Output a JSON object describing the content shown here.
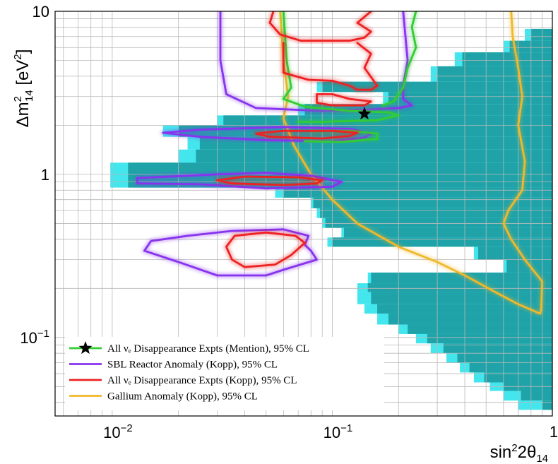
{
  "chart_data": {
    "type": "contour",
    "xlabel": "sin²2θ₁₄",
    "ylabel": "Δm²₁₄ [eV²]",
    "xscale": "log",
    "yscale": "log",
    "xlim": [
      0.0055,
      1.0
    ],
    "ylim": [
      0.033,
      10
    ],
    "grid": true,
    "x_tick_labels": [
      {
        "value": 0.01,
        "base": "10",
        "exp": "−2"
      },
      {
        "value": 0.1,
        "base": "10",
        "exp": "−1"
      },
      {
        "value": 1,
        "base": "1",
        "exp": ""
      }
    ],
    "y_tick_labels": [
      {
        "value": 0.1,
        "base": "10",
        "exp": "−1"
      },
      {
        "value": 1,
        "base": "1",
        "exp": ""
      },
      {
        "value": 10,
        "base": "10",
        "exp": ""
      }
    ],
    "legend_placement": "bottom-left",
    "legend": [
      {
        "label": "All νₑ Disappearance Expts (Mention), 95% CL",
        "color": "#33cc33",
        "marker": "star"
      },
      {
        "label": "SBL Reactor Anomaly (Kopp), 95% CL",
        "color": "#8833ee",
        "marker": "line"
      },
      {
        "label": "All νₑ Disappearance Expts (Kopp), 95% CL",
        "color": "#ee2222",
        "marker": "line"
      },
      {
        "label": "Gallium Anomaly (Kopp), 95% CL",
        "color": "#f0b82a",
        "marker": "line"
      }
    ],
    "colors": {
      "region_inner": "#1fa3a8",
      "region_outer": "#44e6ee",
      "grid": "#b8b8b8"
    },
    "best_fit": {
      "x": 0.14,
      "y": 2.35
    },
    "excluded_region_bands": [
      {
        "y": [
          6.6,
          7.8
        ],
        "x_outer": [
          0.75,
          1.0
        ],
        "x_inner": [
          0.8,
          1.0
        ]
      },
      {
        "y": [
          5.6,
          6.6
        ],
        "x_outer": [
          0.6,
          1.0
        ],
        "x_inner": [
          0.64,
          1.0
        ]
      },
      {
        "y": [
          4.6,
          5.6
        ],
        "x_outer": [
          0.36,
          1.0
        ],
        "x_inner": [
          0.39,
          1.0
        ]
      },
      {
        "y": [
          3.7,
          4.6
        ],
        "x_outer": [
          0.28,
          1.0
        ],
        "x_inner": [
          0.3,
          1.0
        ]
      },
      {
        "y": [
          3.2,
          3.7
        ],
        "x_outer": [
          0.085,
          1.0
        ],
        "x_inner": [
          0.09,
          1.0
        ]
      },
      {
        "y": [
          2.7,
          3.2
        ],
        "x_outer": [
          0.17,
          1.0
        ],
        "x_inner": [
          0.18,
          1.0
        ]
      },
      {
        "y": [
          2.3,
          2.7
        ],
        "x_outer": [
          0.07,
          1.0
        ],
        "x_inner": [
          0.075,
          1.0
        ]
      },
      {
        "y": [
          2.0,
          2.3
        ],
        "x_outer": [
          0.03,
          1.0
        ],
        "x_inner": [
          0.032,
          1.0
        ]
      },
      {
        "y": [
          1.7,
          2.0
        ],
        "x_outer": [
          0.017,
          1.0
        ],
        "x_inner": [
          0.02,
          1.0
        ]
      },
      {
        "y": [
          1.42,
          1.7
        ],
        "x_outer": [
          0.022,
          1.0
        ],
        "x_inner": [
          0.025,
          1.0
        ]
      },
      {
        "y": [
          1.18,
          1.42
        ],
        "x_outer": [
          0.02,
          1.0
        ],
        "x_inner": [
          0.024,
          1.0
        ]
      },
      {
        "y": [
          1.0,
          1.18
        ],
        "x_outer": [
          0.0098,
          1.0
        ],
        "x_inner": [
          0.0118,
          1.0
        ]
      },
      {
        "y": [
          0.83,
          1.0
        ],
        "x_outer": [
          0.0098,
          1.0
        ],
        "x_inner": [
          0.0118,
          1.0
        ]
      },
      {
        "y": [
          0.72,
          0.83
        ],
        "x_outer": [
          0.055,
          1.0
        ],
        "x_inner": [
          0.06,
          1.0
        ]
      },
      {
        "y": [
          0.62,
          0.72
        ],
        "x_outer": [
          0.08,
          1.0
        ],
        "x_inner": [
          0.082,
          1.0
        ]
      },
      {
        "y": [
          0.54,
          0.62
        ],
        "x_outer": [
          0.085,
          1.0
        ],
        "x_inner": [
          0.088,
          1.0
        ]
      },
      {
        "y": [
          0.47,
          0.54
        ],
        "x_outer": [
          0.09,
          1.0
        ],
        "x_inner": [
          0.093,
          1.0
        ]
      },
      {
        "y": [
          0.41,
          0.47
        ],
        "x_outer": [
          0.11,
          1.0
        ],
        "x_inner": [
          0.113,
          1.0
        ]
      },
      {
        "y": [
          0.36,
          0.41
        ],
        "x_outer": [
          0.095,
          1.0
        ],
        "x_inner": [
          0.1,
          1.0
        ]
      },
      {
        "y": [
          0.3,
          0.36
        ],
        "x_outer": [
          0.44,
          1.0
        ],
        "x_inner": [
          0.46,
          1.0
        ]
      },
      {
        "y": [
          0.25,
          0.3
        ],
        "x_outer": [
          0.6,
          1.0
        ],
        "x_inner": [
          0.62,
          1.0
        ]
      },
      {
        "y": [
          0.215,
          0.25
        ],
        "x_outer": [
          0.145,
          1.0
        ],
        "x_inner": [
          0.15,
          1.0
        ]
      },
      {
        "y": [
          0.19,
          0.215
        ],
        "x_outer": [
          0.13,
          1.0
        ],
        "x_inner": [
          0.145,
          1.0
        ]
      },
      {
        "y": [
          0.16,
          0.19
        ],
        "x_outer": [
          0.13,
          1.0
        ],
        "x_inner": [
          0.15,
          1.0
        ]
      },
      {
        "y": [
          0.14,
          0.16
        ],
        "x_outer": [
          0.14,
          1.0
        ],
        "x_inner": [
          0.16,
          1.0
        ]
      },
      {
        "y": [
          0.12,
          0.14
        ],
        "x_outer": [
          0.16,
          1.0
        ],
        "x_inner": [
          0.18,
          1.0
        ]
      },
      {
        "y": [
          0.105,
          0.12
        ],
        "x_outer": [
          0.2,
          1.0
        ],
        "x_inner": [
          0.22,
          1.0
        ]
      },
      {
        "y": [
          0.092,
          0.105
        ],
        "x_outer": [
          0.24,
          1.0
        ],
        "x_inner": [
          0.27,
          1.0
        ]
      },
      {
        "y": [
          0.08,
          0.092
        ],
        "x_outer": [
          0.28,
          1.0
        ],
        "x_inner": [
          0.32,
          1.0
        ]
      },
      {
        "y": [
          0.07,
          0.08
        ],
        "x_outer": [
          0.33,
          1.0
        ],
        "x_inner": [
          0.37,
          1.0
        ]
      },
      {
        "y": [
          0.061,
          0.07
        ],
        "x_outer": [
          0.38,
          1.0
        ],
        "x_inner": [
          0.42,
          1.0
        ]
      },
      {
        "y": [
          0.053,
          0.061
        ],
        "x_outer": [
          0.44,
          1.0
        ],
        "x_inner": [
          0.49,
          1.0
        ]
      },
      {
        "y": [
          0.047,
          0.053
        ],
        "x_outer": [
          0.52,
          1.0
        ],
        "x_inner": [
          0.6,
          1.0
        ]
      },
      {
        "y": [
          0.041,
          0.047
        ],
        "x_outer": [
          0.6,
          1.0
        ],
        "x_inner": [
          0.72,
          1.0
        ]
      },
      {
        "y": [
          0.036,
          0.041
        ],
        "x_outer": [
          0.7,
          1.0
        ],
        "x_inner": [
          0.9,
          1.0
        ]
      }
    ],
    "series": [
      {
        "name": "Gallium Anomaly (Kopp), 95% CL",
        "color": "#f0b82a",
        "curves": [
          [
            [
              0.058,
              10
            ],
            [
              0.06,
              5
            ],
            [
              0.063,
              3
            ],
            [
              0.06,
              2.2
            ],
            [
              0.067,
              1.5
            ],
            [
              0.08,
              1.0
            ],
            [
              0.1,
              0.7
            ],
            [
              0.13,
              0.5
            ],
            [
              0.2,
              0.36
            ],
            [
              0.3,
              0.29
            ],
            [
              0.4,
              0.24
            ],
            [
              0.55,
              0.19
            ],
            [
              0.7,
              0.16
            ],
            [
              0.88,
              0.14
            ],
            [
              0.89,
              0.15
            ],
            [
              0.9,
              0.22
            ],
            [
              0.75,
              0.3
            ],
            [
              0.65,
              0.4
            ],
            [
              0.6,
              0.5
            ],
            [
              0.63,
              0.6
            ],
            [
              0.73,
              0.8
            ],
            [
              0.75,
              1.2
            ],
            [
              0.7,
              2.0
            ],
            [
              0.73,
              3.0
            ],
            [
              0.7,
              4.5
            ],
            [
              0.66,
              7
            ],
            [
              0.65,
              10
            ]
          ]
        ]
      },
      {
        "name": "SBL Reactor Anomaly (Kopp), 95% CL",
        "color": "#8833ee",
        "curves": [
          [
            [
              0.031,
              10
            ],
            [
              0.031,
              5
            ],
            [
              0.033,
              3.1
            ],
            [
              0.045,
              2.55
            ],
            [
              0.09,
              2.45
            ],
            [
              0.15,
              2.5
            ],
            [
              0.2,
              2.55
            ],
            [
              0.23,
              2.65
            ],
            [
              0.21,
              2.9
            ],
            [
              0.21,
              3.5
            ],
            [
              0.22,
              5
            ],
            [
              0.21,
              10
            ]
          ],
          [
            [
              0.025,
              1.7
            ],
            [
              0.05,
              1.62
            ],
            [
              0.1,
              1.6
            ],
            [
              0.14,
              1.68
            ],
            [
              0.15,
              1.78
            ],
            [
              0.12,
              1.9
            ],
            [
              0.06,
              1.95
            ],
            [
              0.025,
              1.88
            ],
            [
              0.017,
              1.8
            ],
            [
              0.025,
              1.7
            ]
          ],
          [
            [
              0.025,
              0.87
            ],
            [
              0.05,
              0.82
            ],
            [
              0.1,
              0.84
            ],
            [
              0.11,
              0.9
            ],
            [
              0.08,
              0.98
            ],
            [
              0.05,
              1.02
            ],
            [
              0.03,
              1.0
            ],
            [
              0.013,
              0.95
            ],
            [
              0.013,
              0.88
            ],
            [
              0.025,
              0.87
            ]
          ],
          [
            [
              0.03,
              0.24
            ],
            [
              0.05,
              0.24
            ],
            [
              0.06,
              0.26
            ],
            [
              0.085,
              0.3
            ],
            [
              0.08,
              0.34
            ],
            [
              0.075,
              0.37
            ],
            [
              0.078,
              0.42
            ],
            [
              0.06,
              0.46
            ],
            [
              0.035,
              0.45
            ],
            [
              0.022,
              0.42
            ],
            [
              0.015,
              0.39
            ],
            [
              0.014,
              0.34
            ],
            [
              0.02,
              0.29
            ],
            [
              0.03,
              0.24
            ]
          ]
        ]
      },
      {
        "name": "All νₑ Disappearance Expts (Mention), 95% CL",
        "color": "#33cc33",
        "curves": [
          [
            [
              0.06,
              10
            ],
            [
              0.062,
              5
            ],
            [
              0.065,
              3.4
            ],
            [
              0.06,
              2.9
            ],
            [
              0.075,
              2.6
            ],
            [
              0.12,
              2.45
            ],
            [
              0.18,
              2.4
            ],
            [
              0.2,
              2.3
            ],
            [
              0.16,
              2.15
            ],
            [
              0.09,
              2.1
            ],
            [
              0.07,
              2.1
            ]
          ],
          [
            [
              0.075,
              1.6
            ],
            [
              0.11,
              1.58
            ],
            [
              0.16,
              1.65
            ],
            [
              0.16,
              1.78
            ],
            [
              0.12,
              1.85
            ],
            [
              0.08,
              1.85
            ]
          ],
          [
            [
              0.24,
              10
            ],
            [
              0.23,
              8
            ],
            [
              0.24,
              6
            ],
            [
              0.22,
              4.5
            ],
            [
              0.21,
              3.4
            ],
            [
              0.19,
              2.8
            ],
            [
              0.17,
              2.65
            ]
          ]
        ]
      },
      {
        "name": "All νₑ Disappearance Expts (Kopp), 95% CL",
        "color": "#ee2222",
        "curves": [
          [
            [
              0.054,
              10
            ],
            [
              0.052,
              8.5
            ],
            [
              0.058,
              7.2
            ],
            [
              0.072,
              6.6
            ],
            [
              0.1,
              6.6
            ],
            [
              0.12,
              6.6
            ],
            [
              0.14,
              6.9
            ],
            [
              0.15,
              7.5
            ],
            [
              0.13,
              8.5
            ],
            [
              0.15,
              10
            ]
          ],
          [
            [
              0.06,
              6.4
            ],
            [
              0.06,
              5
            ],
            [
              0.06,
              4.2
            ],
            [
              0.078,
              3.8
            ],
            [
              0.1,
              3.75
            ],
            [
              0.12,
              3.5
            ],
            [
              0.13,
              3.3
            ],
            [
              0.15,
              3.3
            ],
            [
              0.16,
              3.5
            ],
            [
              0.14,
              4.5
            ],
            [
              0.15,
              5.5
            ],
            [
              0.13,
              6.4
            ]
          ],
          [
            [
              0.085,
              3.1
            ],
            [
              0.085,
              2.75
            ],
            [
              0.1,
              2.65
            ],
            [
              0.14,
              2.65
            ],
            [
              0.15,
              2.8
            ],
            [
              0.12,
              2.9
            ],
            [
              0.1,
              3.1
            ],
            [
              0.085,
              3.1
            ]
          ],
          [
            [
              0.052,
              1.7
            ],
            [
              0.09,
              1.66
            ],
            [
              0.12,
              1.72
            ],
            [
              0.13,
              1.8
            ],
            [
              0.1,
              1.85
            ],
            [
              0.06,
              1.85
            ],
            [
              0.045,
              1.78
            ],
            [
              0.052,
              1.7
            ]
          ],
          [
            [
              0.035,
              0.88
            ],
            [
              0.06,
              0.86
            ],
            [
              0.085,
              0.88
            ],
            [
              0.09,
              0.92
            ],
            [
              0.07,
              0.96
            ],
            [
              0.04,
              0.97
            ],
            [
              0.03,
              0.92
            ],
            [
              0.035,
              0.88
            ]
          ],
          [
            [
              0.04,
              0.27
            ],
            [
              0.055,
              0.28
            ],
            [
              0.065,
              0.32
            ],
            [
              0.075,
              0.38
            ],
            [
              0.068,
              0.42
            ],
            [
              0.05,
              0.44
            ],
            [
              0.036,
              0.42
            ],
            [
              0.033,
              0.36
            ],
            [
              0.035,
              0.3
            ],
            [
              0.04,
              0.27
            ]
          ]
        ]
      }
    ]
  }
}
